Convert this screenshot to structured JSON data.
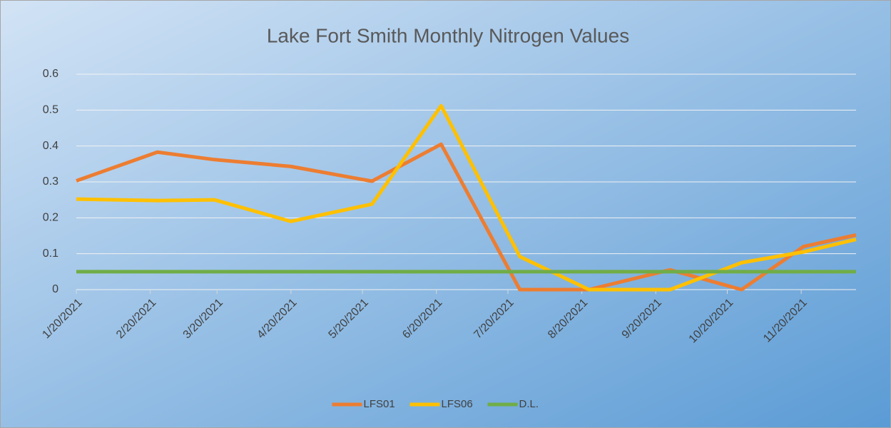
{
  "chart_data": {
    "type": "line",
    "title": "Lake Fort Smith Monthly Nitrogen Values",
    "x": [
      "1/20/2021",
      "2/23/2021",
      "3/19/2021",
      "4/20/2021",
      "5/24/2021",
      "6/22/2021",
      "7/25/2021",
      "8/23/2021",
      "9/26/2021",
      "10/26/2021",
      "11/21/2021",
      "12/13/2021"
    ],
    "series": [
      {
        "name": "LFS01",
        "color": "#ed7d31",
        "values": [
          0.303,
          0.383,
          0.362,
          0.343,
          0.302,
          0.405,
          0,
          0,
          0.055,
          0,
          0.12,
          0.152
        ]
      },
      {
        "name": "LFS06",
        "color": "#ffc000",
        "values": [
          0.252,
          0.248,
          0.25,
          0.19,
          0.238,
          0.512,
          0.092,
          0,
          0,
          0.075,
          0.105,
          0.14
        ]
      },
      {
        "name": "D.L.",
        "color": "#70ad47",
        "values": [
          0.05,
          0.05,
          0.05,
          0.05,
          0.05,
          0.05,
          0.05,
          0.05,
          0.05,
          0.05,
          0.05,
          0.05
        ]
      }
    ],
    "xlim": [
      "1/20/2021",
      "12/13/2021"
    ],
    "xticks": [
      "1/20/2021",
      "2/20/2021",
      "3/20/2021",
      "4/20/2021",
      "5/20/2021",
      "6/20/2021",
      "7/20/2021",
      "8/20/2021",
      "9/20/2021",
      "10/20/2021",
      "11/20/2021"
    ],
    "ylim": [
      0,
      0.6
    ],
    "yticks": [
      0,
      0.1,
      0.2,
      0.3,
      0.4,
      0.5,
      0.6
    ],
    "grid": true,
    "legend": "bottom"
  }
}
